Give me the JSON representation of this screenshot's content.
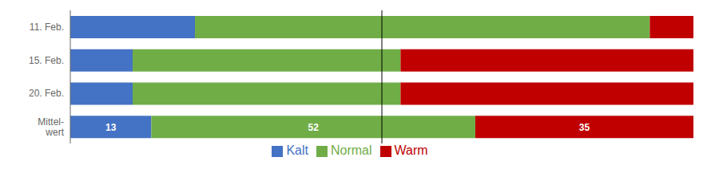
{
  "chart_data": {
    "type": "bar",
    "orientation": "horizontal",
    "stacked": true,
    "categories": [
      "11. Feb.",
      "15. Feb.",
      "20. Feb.",
      "Mittel-\nwert"
    ],
    "series": [
      {
        "name": "Kalt",
        "color": "#4472c4",
        "values": [
          20,
          10,
          10,
          13
        ],
        "value_labels": [
          null,
          null,
          null,
          "13"
        ]
      },
      {
        "name": "Normal",
        "color": "#70ad47",
        "values": [
          73,
          43,
          43,
          52
        ],
        "value_labels": [
          null,
          null,
          null,
          "52"
        ]
      },
      {
        "name": "Warm",
        "color": "#c00000",
        "values": [
          7,
          47,
          47,
          35
        ],
        "value_labels": [
          null,
          null,
          null,
          "35"
        ]
      }
    ],
    "xlim": [
      0,
      100
    ],
    "vline": 50,
    "tick_labels": "y",
    "grid": false,
    "legend": "bottom"
  }
}
